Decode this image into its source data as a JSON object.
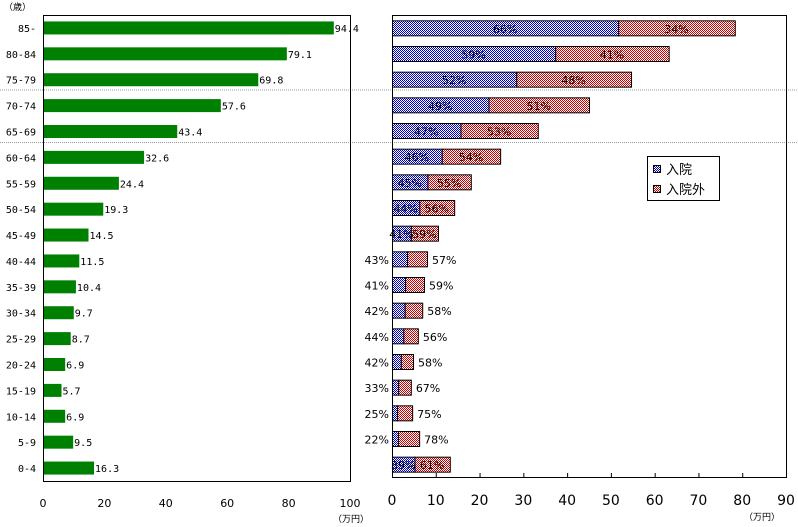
{
  "chart_data": [
    {
      "type": "bar",
      "orientation": "horizontal",
      "ylabel": "（歳）",
      "xlabel": "（万円）",
      "xlim": [
        0,
        100
      ],
      "xticks": [
        "0",
        "20",
        "40",
        "60",
        "80",
        "100"
      ],
      "categories": [
        "85-",
        "80-84",
        "75-79",
        "70-74",
        "65-69",
        "60-64",
        "55-59",
        "50-54",
        "45-49",
        "40-44",
        "35-39",
        "30-34",
        "25-29",
        "20-24",
        "15-19",
        "10-14",
        "5-9",
        "0-4"
      ],
      "values": [
        94.4,
        79.1,
        69.8,
        57.6,
        43.4,
        32.6,
        24.4,
        19.3,
        14.5,
        11.5,
        10.4,
        9.7,
        8.7,
        6.9,
        5.7,
        6.9,
        9.5,
        16.3
      ],
      "value_labels": [
        "94.4",
        "79.1",
        "69.8",
        "57.6",
        "43.4",
        "32.6",
        "24.4",
        "19.3",
        "14.5",
        "11.5",
        "10.4",
        "9.7",
        "8.7",
        "6.9",
        "5.7",
        "6.9",
        "9.5",
        "16.3"
      ],
      "color": "#008000",
      "grid": false
    },
    {
      "type": "bar",
      "orientation": "horizontal",
      "stacked": true,
      "xlabel": "（万円）",
      "xlim": [
        0,
        90
      ],
      "xticks": [
        "0",
        "10",
        "20",
        "30",
        "40",
        "50",
        "60",
        "70",
        "80",
        "90"
      ],
      "categories": [
        "85-",
        "80-84",
        "75-79",
        "70-74",
        "65-69",
        "60-64",
        "55-59",
        "50-54",
        "45-49",
        "40-44",
        "35-39",
        "30-34",
        "25-29",
        "20-24",
        "15-19",
        "10-14",
        "5-9",
        "0-4"
      ],
      "totals": [
        78.3,
        63.2,
        54.6,
        45.0,
        33.3,
        24.7,
        18.0,
        14.2,
        10.5,
        8.0,
        7.3,
        6.9,
        5.9,
        4.8,
        4.3,
        4.6,
        6.2,
        13.2
      ],
      "series": [
        {
          "name": "入院",
          "color": "#3333cc",
          "percent": [
            66,
            59,
            52,
            49,
            47,
            46,
            45,
            44,
            41,
            43,
            41,
            42,
            44,
            42,
            33,
            25,
            22,
            39
          ],
          "labels": [
            "66%",
            "59%",
            "52%",
            "49%",
            "47%",
            "46%",
            "45%",
            "44%",
            "41%",
            "43%",
            "41%",
            "42%",
            "44%",
            "42%",
            "33%",
            "25%",
            "22%",
            "39%"
          ]
        },
        {
          "name": "入院外",
          "color": "#cc3333",
          "percent": [
            34,
            41,
            48,
            51,
            53,
            54,
            55,
            56,
            59,
            57,
            59,
            58,
            56,
            58,
            67,
            75,
            78,
            61
          ],
          "labels": [
            "34%",
            "41%",
            "48%",
            "51%",
            "53%",
            "54%",
            "55%",
            "56%",
            "59%",
            "57%",
            "59%",
            "58%",
            "56%",
            "58%",
            "67%",
            "75%",
            "78%",
            "61%"
          ]
        }
      ],
      "legend": {
        "position": "right",
        "items": [
          "入院",
          "入院外"
        ]
      },
      "grid": false
    }
  ]
}
